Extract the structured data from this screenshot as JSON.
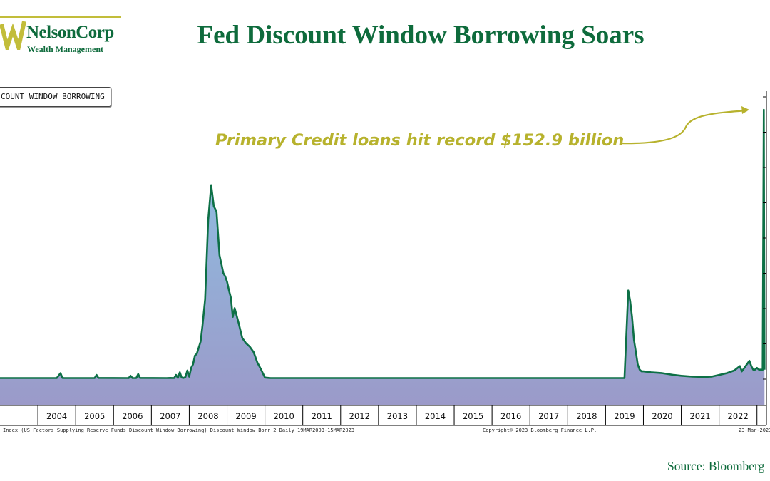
{
  "logo": {
    "brand": "NelsonCorp",
    "subtitle": "Wealth Management"
  },
  "title": "Fed Discount Window Borrowing Soars",
  "legend_label": "COUNT WINDOW BORROWING",
  "annotation": "Primary Credit loans hit record $152.9 billion",
  "footnote_left": "Index (US Factors Supplying Reserve Funds Discount Window Borrowing) Discount Window Borr 2  Daily 19MAR2003-15MAR2023",
  "footnote_center": "Copyright© 2023 Bloomberg Finance L.P.",
  "footnote_right": "23-Mar-2023",
  "source": "Source: Bloomberg",
  "colors": {
    "brand_green": "#0e6b3c",
    "accent_olive": "#b7b22d",
    "line": "#0d7046",
    "fill_top": "#8cc5e6",
    "fill_bottom": "#9b9ac9"
  },
  "chart_data": {
    "type": "area",
    "x_tick_labels": [
      "2004",
      "2005",
      "2006",
      "2007",
      "2008",
      "2009",
      "2010",
      "2011",
      "2012",
      "2013",
      "2014",
      "2015",
      "2016",
      "2017",
      "2018",
      "2019",
      "2020",
      "2021",
      "2022"
    ],
    "y_unit": "USD billions",
    "ylim": [
      0,
      165
    ],
    "grid": false,
    "legend_placement": "top-left",
    "x": [
      2003.0,
      2004.5,
      2004.6,
      2004.65,
      2004.7,
      2005.5,
      2005.55,
      2005.6,
      2006.4,
      2006.45,
      2006.5,
      2006.6,
      2006.65,
      2006.7,
      2007.4,
      2007.5,
      2007.6,
      2007.65,
      2007.7,
      2007.75,
      2007.8,
      2007.85,
      2007.9,
      2007.95,
      2008.0,
      2008.05,
      2008.1,
      2008.15,
      2008.2,
      2008.3,
      2008.35,
      2008.42,
      2008.5,
      2008.58,
      2008.65,
      2008.72,
      2008.8,
      2008.85,
      2008.9,
      2008.95,
      2009.0,
      2009.05,
      2009.1,
      2009.15,
      2009.2,
      2009.3,
      2009.4,
      2009.5,
      2009.6,
      2009.7,
      2009.8,
      2009.9,
      2010.0,
      2010.1,
      2010.15,
      2010.2,
      2010.3,
      2019.5,
      2019.6,
      2019.65,
      2019.7,
      2019.75,
      2019.8,
      2019.85,
      2019.9,
      2019.95,
      2020.0,
      2020.2,
      2020.5,
      2020.8,
      2021.0,
      2021.3,
      2021.6,
      2021.8,
      2022.0,
      2022.2,
      2022.4,
      2022.55,
      2022.6,
      2022.7,
      2022.8,
      2022.85,
      2022.9,
      2022.95,
      2023.0,
      2023.05,
      2023.12,
      2023.15,
      2023.18,
      2023.2
    ],
    "y": [
      0.2,
      0.2,
      3.0,
      0.3,
      0.2,
      0.2,
      2.0,
      0.3,
      0.2,
      1.5,
      0.2,
      0.2,
      2.5,
      0.3,
      0.2,
      0.3,
      0.2,
      2.0,
      0.3,
      3.5,
      0.5,
      0.3,
      0.8,
      4.5,
      1.0,
      6.0,
      8.0,
      13.0,
      14.0,
      21.0,
      30.0,
      45.0,
      90.0,
      110.0,
      98.0,
      95.0,
      70.0,
      65.0,
      60.0,
      58.0,
      55.0,
      50.0,
      46.0,
      35.0,
      40.0,
      32.0,
      23.0,
      20.0,
      18.0,
      15.0,
      9.0,
      5.0,
      0.5,
      0.3,
      0.2,
      0.2,
      0.2,
      0.2,
      50.0,
      44.0,
      35.0,
      22.0,
      15.0,
      8.0,
      5.0,
      4.0,
      4.0,
      3.5,
      3.0,
      2.0,
      1.5,
      1.0,
      0.8,
      1.0,
      2.0,
      3.0,
      4.5,
      7.0,
      4.0,
      7.0,
      10.0,
      7.0,
      5.0,
      5.0,
      6.0,
      5.0,
      5.0,
      5.0,
      152.9,
      5.0
    ]
  }
}
